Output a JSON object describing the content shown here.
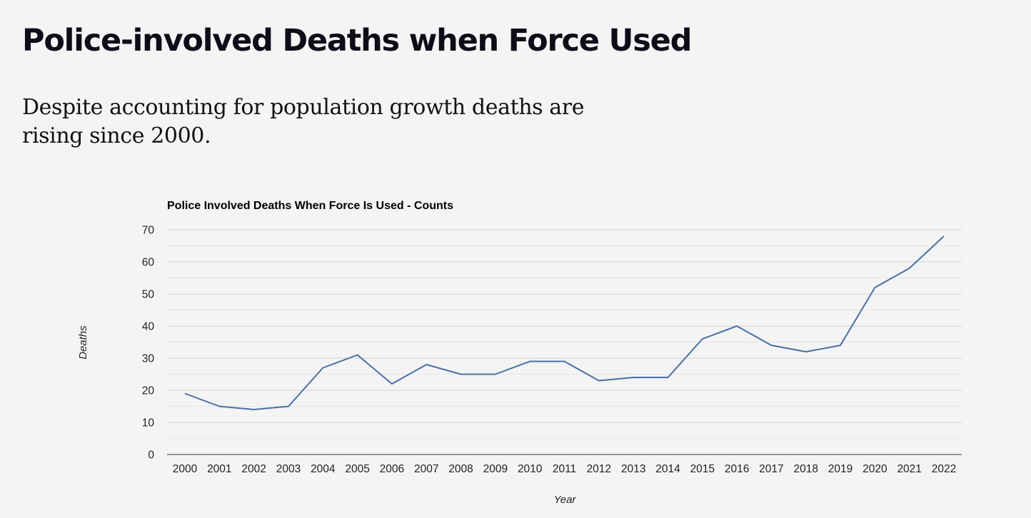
{
  "page": {
    "title": "Police-involved Deaths when Force Used",
    "subtitle": "Despite accounting for population growth deaths are rising since 2000."
  },
  "chart_data": {
    "type": "line",
    "title": "Police Involved Deaths When Force Is Used - Counts",
    "xlabel": "Year",
    "ylabel": "Deaths",
    "x": [
      "2000",
      "2001",
      "2002",
      "2003",
      "2004",
      "2005",
      "2006",
      "2007",
      "2008",
      "2009",
      "2010",
      "2011",
      "2012",
      "2013",
      "2014",
      "2015",
      "2016",
      "2017",
      "2018",
      "2019",
      "2020",
      "2021",
      "2022"
    ],
    "series": [
      {
        "values": [
          19,
          15,
          14,
          15,
          27,
          31,
          22,
          28,
          25,
          25,
          29,
          29,
          23,
          24,
          24,
          36,
          40,
          34,
          32,
          34,
          52,
          58,
          68
        ]
      }
    ],
    "ylim": [
      0,
      70
    ],
    "yticks": [
      0,
      10,
      20,
      30,
      40,
      50,
      60,
      70
    ],
    "grid": true,
    "legend": "none",
    "colors": {
      "line": "#4a6fa5",
      "grid_major": "#cfcfd3",
      "grid_minor": "#e6e6e9",
      "axis": "#333333"
    }
  }
}
